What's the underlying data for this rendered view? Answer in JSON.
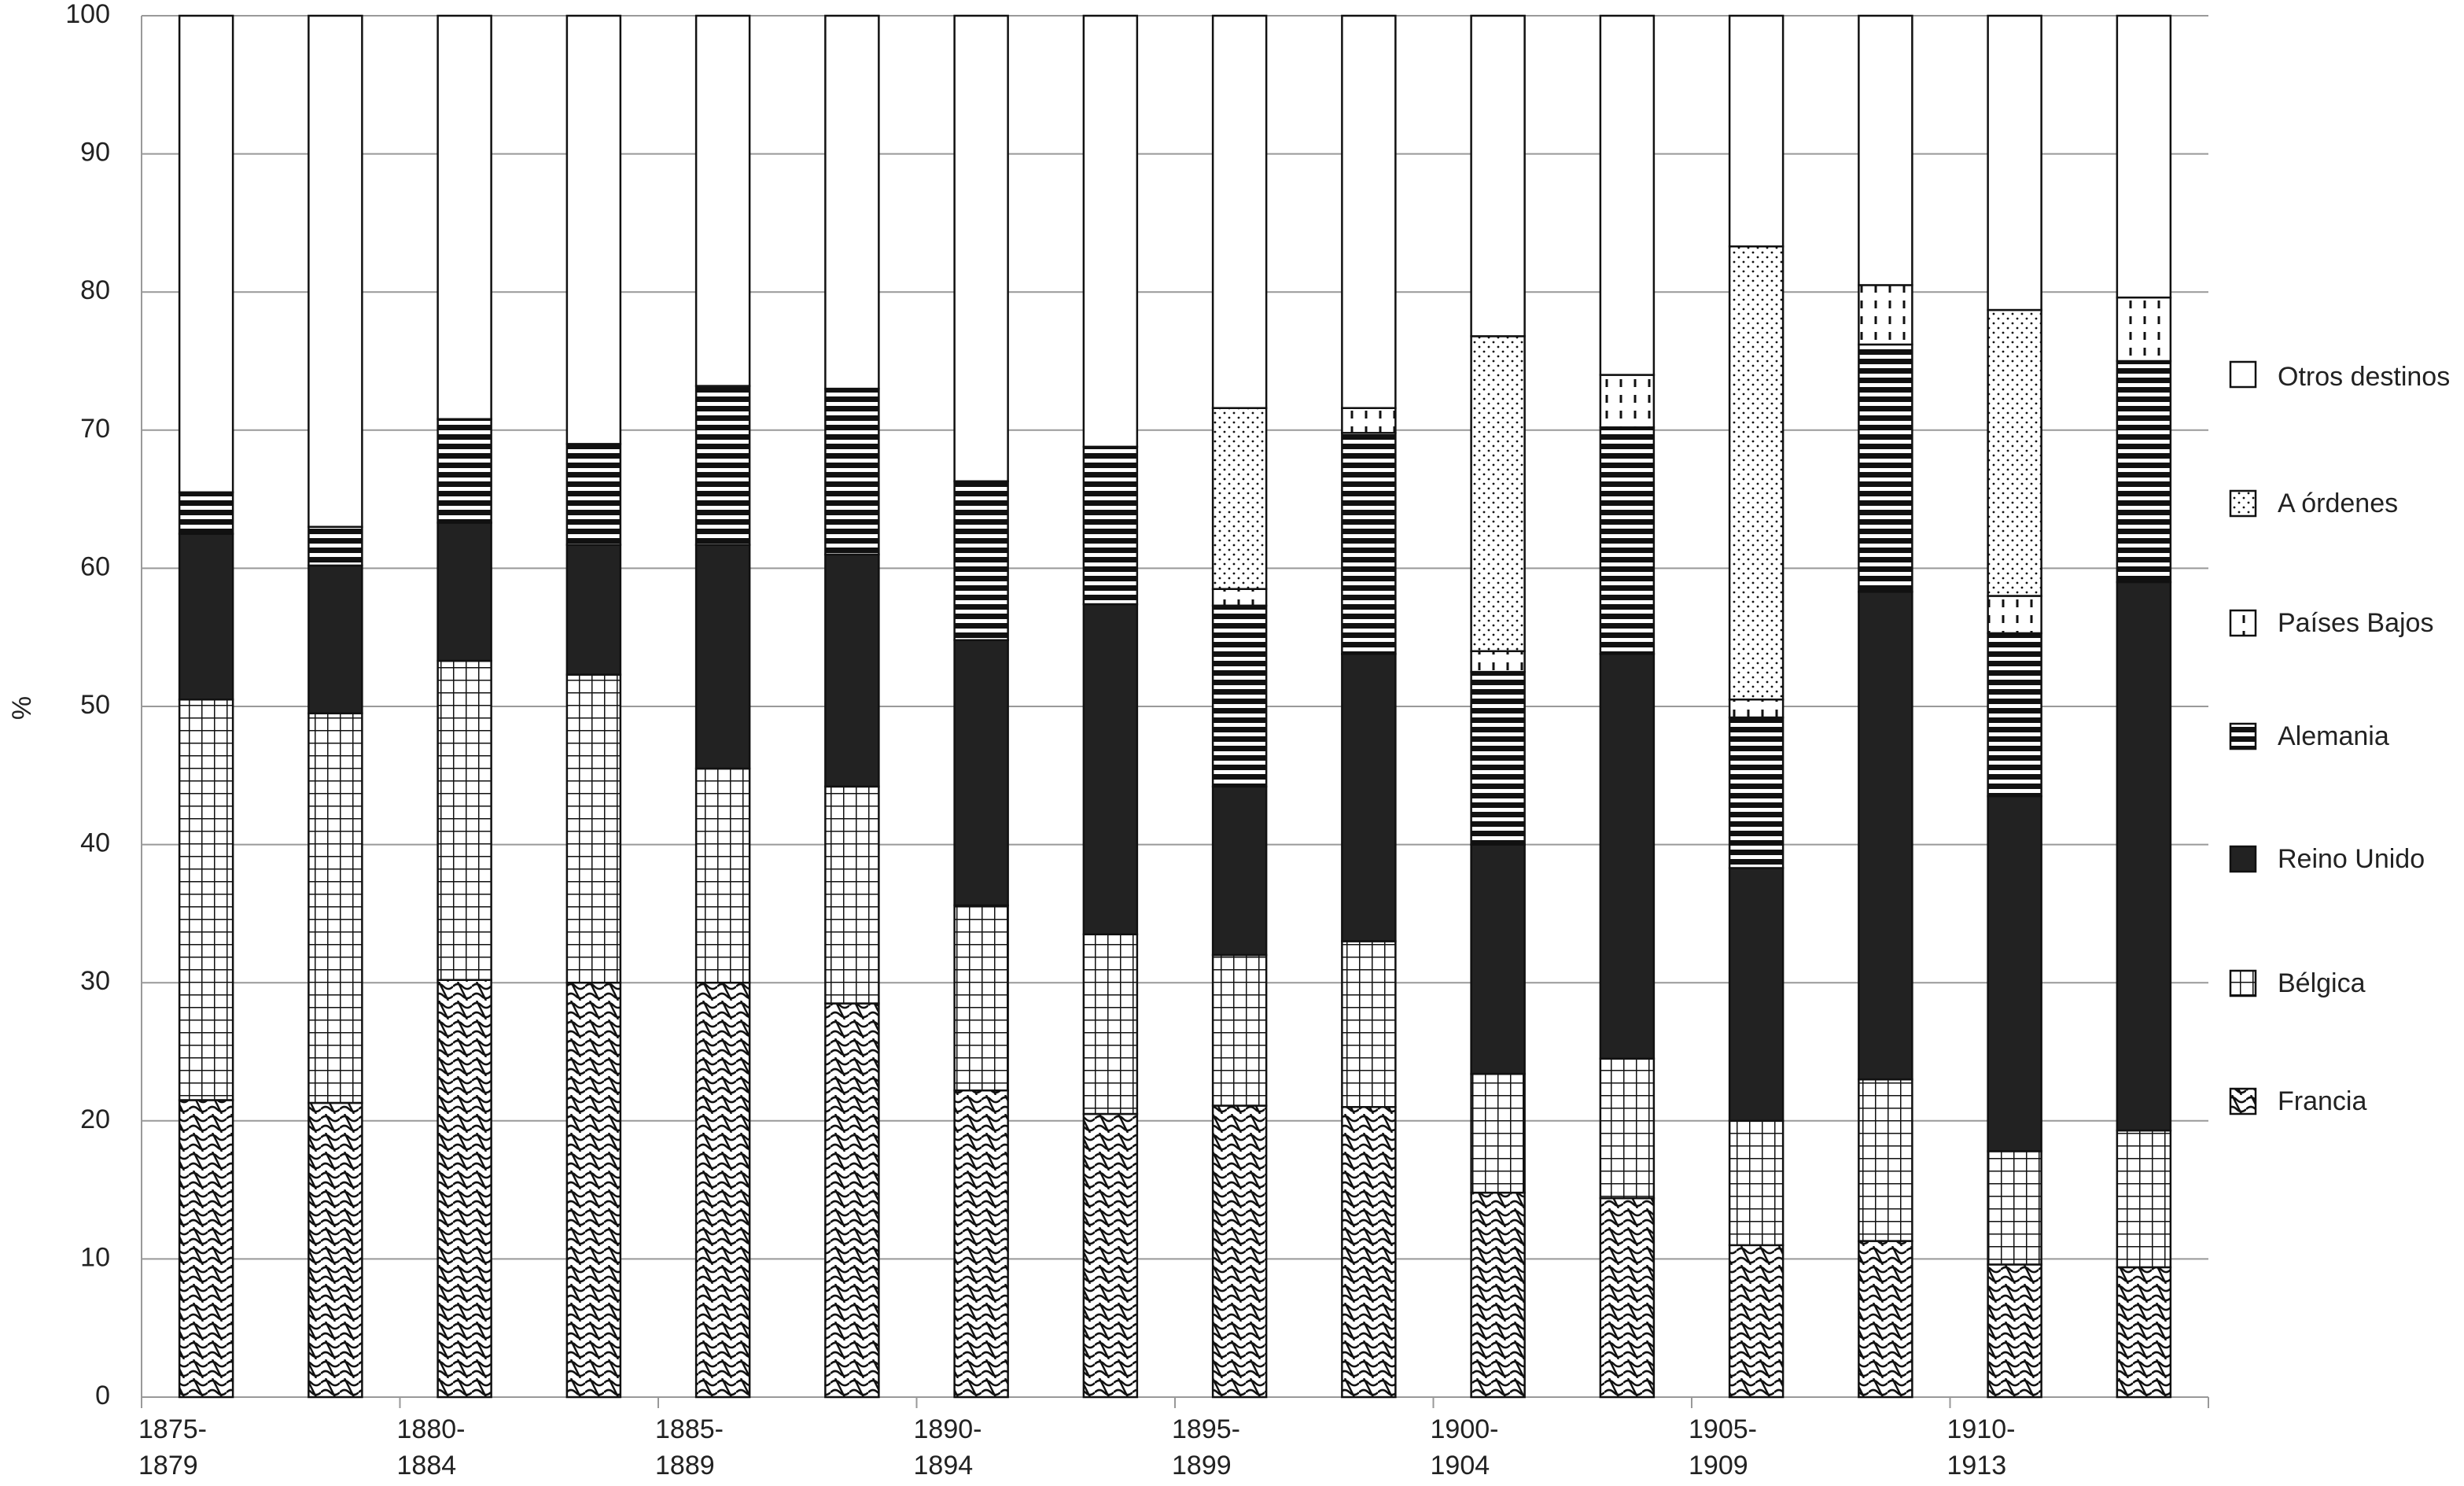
{
  "chart_data": {
    "type": "stacked-bar",
    "y_label": "%",
    "categories": [
      "1875-\n1879",
      null,
      "1880-\n1884",
      null,
      "1885-\n1889",
      null,
      "1890-\n1894",
      null,
      "1895-\n1899",
      null,
      "1900-\n1904",
      null,
      "1905-\n1909",
      null,
      "1910-\n1913",
      null
    ],
    "ylim": [
      0,
      100
    ],
    "yticks": [
      0,
      10,
      20,
      30,
      40,
      50,
      60,
      70,
      80,
      90,
      100
    ],
    "grid": true,
    "legend": "right",
    "series": [
      {
        "name": "Francia",
        "color": "#000000",
        "pattern": "wave",
        "values": [
          21.5,
          21.3,
          30.2,
          30,
          30,
          28.5,
          22.2,
          20.5,
          21.1,
          21,
          14.8,
          14.4,
          11,
          11.3,
          9.6,
          9.4
        ]
      },
      {
        "name": "Bélgica",
        "color": "#000000",
        "pattern": "grid",
        "values": [
          29,
          28.2,
          23.1,
          22.3,
          15.5,
          15.7,
          13.4,
          13,
          10.9,
          12,
          8.6,
          10.1,
          9,
          11.7,
          8.2,
          9.9
        ]
      },
      {
        "name": "Reino Unido",
        "color": "#222222",
        "pattern": "solid",
        "values": [
          12,
          10.7,
          10,
          9.4,
          16.2,
          16.8,
          19.2,
          23.9,
          12.2,
          20.8,
          16.6,
          29.3,
          18.3,
          35.3,
          25.7,
          39.7
        ]
      },
      {
        "name": "Alemania",
        "color": "#000000",
        "pattern": "hstripe",
        "values": [
          3,
          2.8,
          7.5,
          7.3,
          11.5,
          12,
          11.5,
          11.4,
          13.1,
          16,
          12.5,
          16.4,
          10.9,
          17.9,
          11.8,
          16
        ]
      },
      {
        "name": "Países Bajos",
        "color": "#000000",
        "pattern": "vdash",
        "values": [
          0,
          0,
          0,
          0,
          0,
          0,
          0,
          0,
          1.2,
          1.8,
          1.5,
          3.8,
          1.3,
          4.3,
          2.7,
          4.6
        ]
      },
      {
        "name": "A órdenes",
        "color": "#000000",
        "pattern": "dots",
        "values": [
          0,
          0,
          0,
          0,
          0,
          0,
          0,
          0,
          13.1,
          0,
          22.8,
          0,
          32.8,
          0,
          20.7,
          0
        ]
      },
      {
        "name": "Otros destinos",
        "color": "#ffffff",
        "pattern": "none",
        "values": [
          34.5,
          37,
          29.2,
          31,
          26.8,
          27,
          33.7,
          31.2,
          28.4,
          28.4,
          23.2,
          26,
          16.7,
          19.5,
          21.3,
          20.4
        ]
      }
    ]
  }
}
